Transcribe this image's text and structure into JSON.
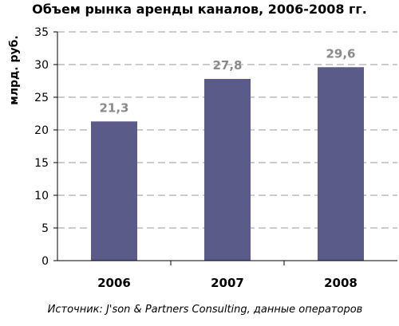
{
  "chart_data": {
    "type": "bar",
    "title": "Объем рынка аренды каналов, 2006-2008 гг.",
    "ylabel": "млрд. руб.",
    "xlabel": "",
    "categories": [
      "2006",
      "2007",
      "2008"
    ],
    "values": [
      21.3,
      27.8,
      29.6
    ],
    "data_labels": [
      "21,3",
      "27,8",
      "29,6"
    ],
    "ylim": [
      0,
      35
    ],
    "yticks": [
      0,
      5,
      10,
      15,
      20,
      25,
      30,
      35
    ],
    "grid": "horizontal dashed",
    "bar_color": "#5b5b8a",
    "label_color": "#8a8a8a"
  },
  "source": "Источник: J'son & Partners Consulting, данные операторов"
}
